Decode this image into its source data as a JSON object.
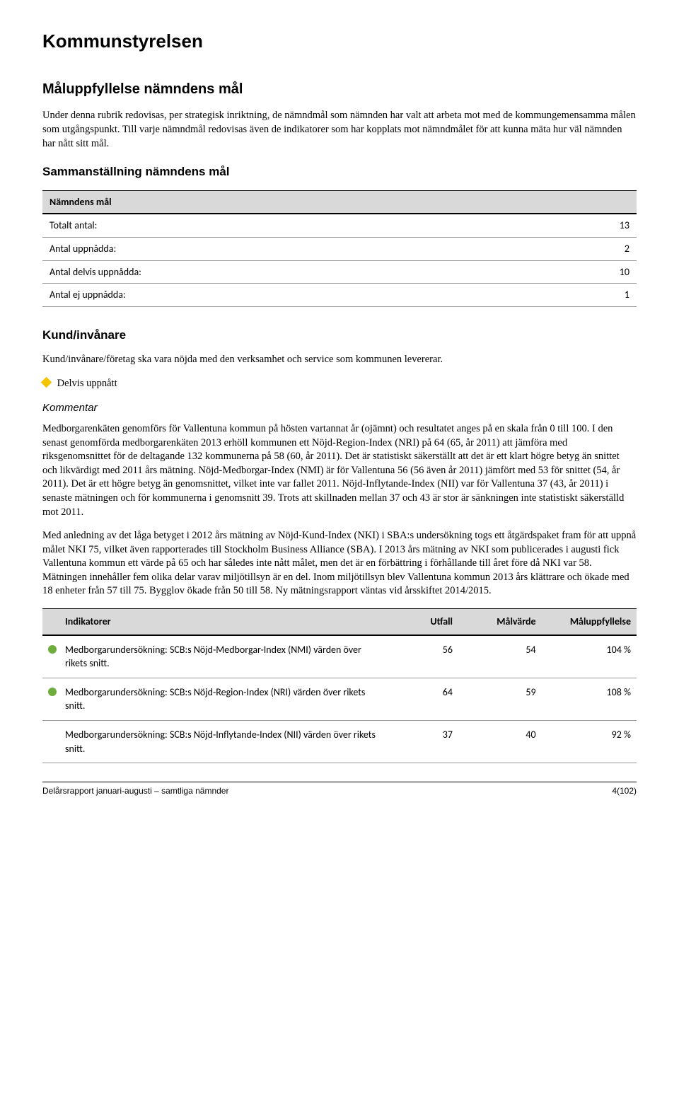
{
  "title": "Kommunstyrelsen",
  "section1": {
    "heading": "Måluppfyllelse nämndens mål",
    "intro": "Under denna rubrik redovisas, per strategisk inriktning, de nämndmål som nämnden har valt att arbeta mot med de kommungemensamma målen som utgångspunkt. Till varje nämndmål redovisas även de indikatorer som har kopplats mot nämndmålet för att kunna mäta hur väl nämnden har nått sitt mål.",
    "subheading": "Sammanställning nämndens mål"
  },
  "nm_table": {
    "header": "Nämndens mål",
    "rows": [
      {
        "label": "Totalt antal:",
        "value": "13"
      },
      {
        "label": "Antal uppnådda:",
        "value": "2"
      },
      {
        "label": "Antal delvis uppnådda:",
        "value": "10"
      },
      {
        "label": "Antal ej uppnådda:",
        "value": "1"
      }
    ]
  },
  "kund": {
    "heading": "Kund/invånare",
    "intro": "Kund/invånare/företag ska vara nöjda med den verksamhet och service som kommunen levererar.",
    "status_label": "Delvis uppnått",
    "status_color": "#f2c500",
    "kommentar_label": "Kommentar",
    "para1": "Medborgarenkäten genomförs för Vallentuna kommun på hösten vartannat år (ojämnt) och resultatet anges på en skala från 0 till 100. I den senast genomförda medborgarenkäten 2013 erhöll kommunen ett Nöjd-Region-Index (NRI) på 64 (65, år 2011) att jämföra med riksgenomsnittet för de deltagande 132 kommunerna på 58 (60, år 2011). Det är statistiskt säkerställt att det är ett klart högre betyg än snittet och likvärdigt med 2011 års mätning. Nöjd-Medborgar-Index (NMI) är för Vallentuna 56 (56 även år 2011) jämfört med 53 för snittet (54, år 2011). Det är ett högre betyg än genomsnittet, vilket inte var fallet 2011. Nöjd-Inflytande-Index (NII) var för Vallentuna 37 (43, år 2011) i senaste mätningen och för kommunerna i genomsnitt 39. Trots att skillnaden mellan 37 och 43 är stor är sänkningen inte statistiskt säkerställd mot 2011.",
    "para2": "Med anledning av det låga betyget i 2012 års mätning av Nöjd-Kund-Index (NKI) i SBA:s undersökning togs ett åtgärdspaket fram för att uppnå målet NKI 75, vilket även rapporterades till Stockholm Business Alliance (SBA). I 2013 års mätning av NKI som publicerades i augusti fick Vallentuna kommun ett värde på 65 och har således inte nått målet, men det är en förbättring i förhållande till året före då NKI var 58. Mätningen innehåller fem olika delar varav miljötillsyn är en del. Inom miljötillsyn blev Vallentuna kommun 2013 års klättrare och ökade med 18 enheter från 57 till 75. Bygglov ökade från 50 till 58. Ny mätningsrapport väntas vid årsskiftet 2014/2015."
  },
  "indikatorer": {
    "headers": [
      "Indikatorer",
      "Utfall",
      "Målvärde",
      "Måluppfyllelse"
    ],
    "col_widths": [
      "58%",
      "12%",
      "14%",
      "16%"
    ],
    "rows": [
      {
        "dot_color": "#6fae3e",
        "desc": "Medborgarundersökning: SCB:s Nöjd-Medborgar-Index (NMI) värden över rikets snitt.",
        "utfall": "56",
        "malvarde": "54",
        "uppf": "104 %"
      },
      {
        "dot_color": "#6fae3e",
        "desc": "Medborgarundersökning: SCB:s Nöjd-Region-Index (NRI) värden över rikets snitt.",
        "utfall": "64",
        "malvarde": "59",
        "uppf": "108 %"
      },
      {
        "dot_color": "",
        "desc": "Medborgarundersökning: SCB:s Nöjd-Inflytande-Index (NII) värden över rikets snitt.",
        "utfall": "37",
        "malvarde": "40",
        "uppf": "92 %"
      }
    ]
  },
  "footer": {
    "left": "Delårsrapport januari-augusti – samtliga nämnder",
    "right": "4(102)"
  },
  "colors": {
    "header_bg": "#d9d9d9",
    "border": "#000000",
    "row_border": "#999999"
  }
}
